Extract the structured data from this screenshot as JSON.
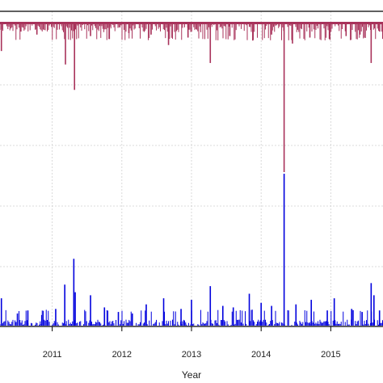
{
  "chart_data": {
    "type": "bar",
    "xlabel": "Year",
    "ylabel": "",
    "title": "",
    "x_range": [
      2010.25,
      2015.75
    ],
    "x_ticks": [
      "2011",
      "2012",
      "2013",
      "2014",
      "2015"
    ],
    "grid": true,
    "colors": {
      "top_series": "#a8325a",
      "bottom_series": "#0000dd",
      "grid": "#d0d0d0",
      "frame": "#000000"
    },
    "top_panel_value_range": [
      0,
      100
    ],
    "bottom_panel_value_range": [
      0,
      100
    ],
    "top_series_spikes": [
      {
        "x": 2010.27,
        "value": 19
      },
      {
        "x": 2010.55,
        "value": 6
      },
      {
        "x": 2010.78,
        "value": 8
      },
      {
        "x": 2011.19,
        "value": 28
      },
      {
        "x": 2011.32,
        "value": 45
      },
      {
        "x": 2011.55,
        "value": 9
      },
      {
        "x": 2011.82,
        "value": 11
      },
      {
        "x": 2012.1,
        "value": 7
      },
      {
        "x": 2012.42,
        "value": 8
      },
      {
        "x": 2012.67,
        "value": 15
      },
      {
        "x": 2012.95,
        "value": 10
      },
      {
        "x": 2013.27,
        "value": 27
      },
      {
        "x": 2013.55,
        "value": 9
      },
      {
        "x": 2013.88,
        "value": 12
      },
      {
        "x": 2014.15,
        "value": 8
      },
      {
        "x": 2014.33,
        "value": 100
      },
      {
        "x": 2014.45,
        "value": 14
      },
      {
        "x": 2014.7,
        "value": 10
      },
      {
        "x": 2014.98,
        "value": 11
      },
      {
        "x": 2015.22,
        "value": 9
      },
      {
        "x": 2015.42,
        "value": 8
      },
      {
        "x": 2015.58,
        "value": 27
      },
      {
        "x": 2015.7,
        "value": 6
      }
    ],
    "bottom_series_spikes": [
      {
        "x": 2010.27,
        "value": 18
      },
      {
        "x": 2010.5,
        "value": 8
      },
      {
        "x": 2010.65,
        "value": 10
      },
      {
        "x": 2010.85,
        "value": 7
      },
      {
        "x": 2011.05,
        "value": 11
      },
      {
        "x": 2011.18,
        "value": 27
      },
      {
        "x": 2011.31,
        "value": 44
      },
      {
        "x": 2011.33,
        "value": 22
      },
      {
        "x": 2011.55,
        "value": 20
      },
      {
        "x": 2011.75,
        "value": 12
      },
      {
        "x": 2011.95,
        "value": 9
      },
      {
        "x": 2012.15,
        "value": 8
      },
      {
        "x": 2012.35,
        "value": 14
      },
      {
        "x": 2012.6,
        "value": 18
      },
      {
        "x": 2012.85,
        "value": 11
      },
      {
        "x": 2013.0,
        "value": 17
      },
      {
        "x": 2013.27,
        "value": 26
      },
      {
        "x": 2013.45,
        "value": 13
      },
      {
        "x": 2013.6,
        "value": 12
      },
      {
        "x": 2013.83,
        "value": 21
      },
      {
        "x": 2014.0,
        "value": 15
      },
      {
        "x": 2014.15,
        "value": 13
      },
      {
        "x": 2014.33,
        "value": 100
      },
      {
        "x": 2014.5,
        "value": 14
      },
      {
        "x": 2014.72,
        "value": 17
      },
      {
        "x": 2014.95,
        "value": 10
      },
      {
        "x": 2015.05,
        "value": 18
      },
      {
        "x": 2015.3,
        "value": 11
      },
      {
        "x": 2015.45,
        "value": 9
      },
      {
        "x": 2015.58,
        "value": 28
      },
      {
        "x": 2015.62,
        "value": 20
      },
      {
        "x": 2015.7,
        "value": 10
      }
    ]
  }
}
